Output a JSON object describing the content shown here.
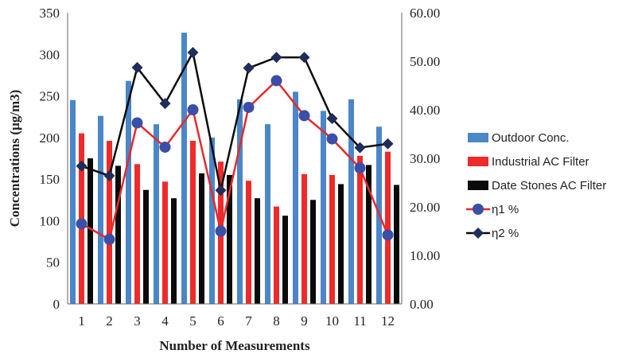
{
  "chart_data": {
    "type": "bar",
    "xlabel": "Number of Measurements",
    "ylabel": "Concentrations (µg/m3)",
    "categories": [
      "1",
      "2",
      "3",
      "4",
      "5",
      "6",
      "7",
      "8",
      "9",
      "10",
      "11",
      "12"
    ],
    "ylim": [
      0,
      350
    ],
    "y_ticks": [
      "0",
      "50",
      "100",
      "150",
      "200",
      "250",
      "300",
      "350"
    ],
    "y2lim": [
      0,
      60
    ],
    "y2_ticks": [
      "0.00",
      "10.00",
      "20.00",
      "30.00",
      "40.00",
      "50.00",
      "60.00"
    ],
    "grid": false,
    "legend_position": "right",
    "series": [
      {
        "name": "Outdoor Conc.",
        "kind": "bar",
        "axis": "left",
        "color": "#4a86c8",
        "values": [
          245,
          226,
          268,
          216,
          326,
          200,
          246,
          216,
          255,
          232,
          246,
          213
        ]
      },
      {
        "name": "Industrial AC Filter",
        "kind": "bar",
        "axis": "left",
        "color": "#ee2a2a",
        "values": [
          205,
          196,
          168,
          147,
          196,
          171,
          148,
          117,
          156,
          155,
          178,
          183
        ]
      },
      {
        "name": "Date Stones AC Filter",
        "kind": "bar",
        "axis": "left",
        "color": "#0a0a0a",
        "values": [
          175,
          166,
          137,
          127,
          157,
          155,
          127,
          106,
          125,
          144,
          167,
          143
        ]
      },
      {
        "name": "η1  %",
        "kind": "line",
        "axis": "right",
        "color": "#e8292a",
        "marker": "circle",
        "marker_color": "#3b4ea8",
        "values": [
          16.5,
          13.3,
          37.3,
          32.3,
          40.0,
          15.0,
          40.5,
          46.0,
          38.8,
          34.0,
          28.0,
          14.2
        ]
      },
      {
        "name": "η2  %",
        "kind": "line",
        "axis": "right",
        "color": "#0a0a0a",
        "marker": "diamond",
        "marker_color": "#1f2d5a",
        "values": [
          28.4,
          26.4,
          48.7,
          41.3,
          51.8,
          23.4,
          48.6,
          50.8,
          50.8,
          38.2,
          32.2,
          33.0
        ]
      }
    ]
  }
}
